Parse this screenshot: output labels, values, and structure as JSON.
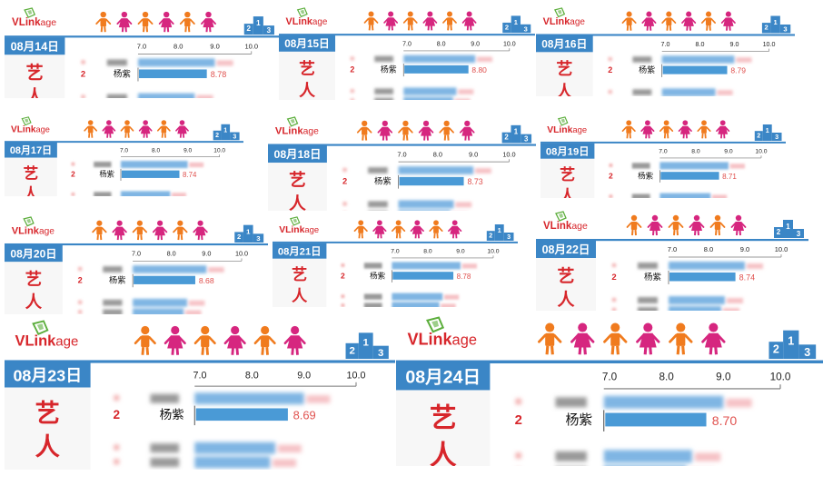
{
  "brand": {
    "logo_text_v": "VLink",
    "logo_text_age": "age",
    "colors": {
      "brand_red": "#d7262b",
      "brand_blue": "#3b86c6",
      "bar_blue": "#4a9ad6",
      "score_red": "#e0524f",
      "person_orange": "#f07b1e",
      "person_pink": "#d6267f",
      "logo_green": "#5cae3c"
    }
  },
  "section_label": "艺人",
  "rank_label": "2",
  "artist_label": "杨紫",
  "chart_data": [
    {
      "type": "bar",
      "date": "08月14日",
      "ticks": [
        7.0,
        8.0,
        9.0,
        10.0
      ],
      "xlim": [
        7.0,
        10.0
      ],
      "highlight": {
        "rank": 2,
        "name": "杨紫",
        "value": 8.78
      }
    },
    {
      "type": "bar",
      "date": "08月15日",
      "ticks": [
        7.0,
        8.0,
        9.0,
        10.0
      ],
      "xlim": [
        7.0,
        10.0
      ],
      "highlight": {
        "rank": 2,
        "name": "杨紫",
        "value": 8.8
      }
    },
    {
      "type": "bar",
      "date": "08月16日",
      "ticks": [
        7.0,
        8.0,
        9.0,
        10.0
      ],
      "xlim": [
        7.0,
        10.0
      ],
      "highlight": {
        "rank": 2,
        "name": "杨紫",
        "value": 8.79
      }
    },
    {
      "type": "bar",
      "date": "08月17日",
      "ticks": [
        7.0,
        8.0,
        9.0,
        10.0
      ],
      "xlim": [
        7.0,
        10.0
      ],
      "highlight": {
        "rank": 2,
        "name": "杨紫",
        "value": 8.74
      }
    },
    {
      "type": "bar",
      "date": "08月18日",
      "ticks": [
        7.0,
        8.0,
        9.0,
        10.0
      ],
      "xlim": [
        7.0,
        10.0
      ],
      "highlight": {
        "rank": 2,
        "name": "杨紫",
        "value": 8.73
      }
    },
    {
      "type": "bar",
      "date": "08月19日",
      "ticks": [
        7.0,
        8.0,
        9.0,
        10.0
      ],
      "xlim": [
        7.0,
        10.0
      ],
      "highlight": {
        "rank": 2,
        "name": "杨紫",
        "value": 8.71
      }
    },
    {
      "type": "bar",
      "date": "08月20日",
      "ticks": [
        7.0,
        8.0,
        9.0,
        10.0
      ],
      "xlim": [
        7.0,
        10.0
      ],
      "highlight": {
        "rank": 2,
        "name": "杨紫",
        "value": 8.68
      }
    },
    {
      "type": "bar",
      "date": "08月21日",
      "ticks": [
        7.0,
        8.0,
        9.0,
        10.0
      ],
      "xlim": [
        7.0,
        10.0
      ],
      "highlight": {
        "rank": 2,
        "name": "杨紫",
        "value": 8.78
      }
    },
    {
      "type": "bar",
      "date": "08月22日",
      "ticks": [
        7.0,
        8.0,
        9.0,
        10.0
      ],
      "xlim": [
        7.0,
        10.0
      ],
      "highlight": {
        "rank": 2,
        "name": "杨紫",
        "value": 8.74
      }
    },
    {
      "type": "bar",
      "date": "08月23日",
      "ticks": [
        7.0,
        8.0,
        9.0,
        10.0
      ],
      "xlim": [
        7.0,
        10.0
      ],
      "highlight": {
        "rank": 2,
        "name": "杨紫",
        "value": 8.69
      }
    },
    {
      "type": "bar",
      "date": "08月24日",
      "ticks": [
        7.0,
        8.0,
        9.0,
        10.0
      ],
      "xlim": [
        7.0,
        10.0
      ],
      "highlight": {
        "rank": 2,
        "name": "杨紫",
        "value": 8.7
      }
    }
  ]
}
